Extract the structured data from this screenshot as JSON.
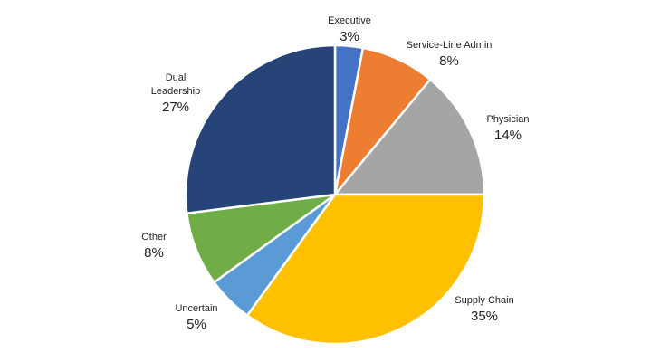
{
  "chart_data": {
    "type": "pie",
    "start": "top",
    "direction": "clockwise",
    "slices": [
      {
        "label": "Executive",
        "value": 3,
        "pct_label": "3%",
        "color": "#4472C4"
      },
      {
        "label": "Service-Line Admin",
        "value": 8,
        "pct_label": "8%",
        "color": "#ED7D31"
      },
      {
        "label": "Physician",
        "value": 14,
        "pct_label": "14%",
        "color": "#A5A5A5"
      },
      {
        "label": "Supply Chain",
        "value": 35,
        "pct_label": "35%",
        "color": "#FFC000"
      },
      {
        "label": "Uncertain",
        "value": 5,
        "pct_label": "5%",
        "color": "#5B9BD5"
      },
      {
        "label": "Other",
        "value": 8,
        "pct_label": "8%",
        "color": "#70AD47"
      },
      {
        "label": "Dual Leadership",
        "value": 27,
        "pct_label": "27%",
        "color": "#264478"
      }
    ]
  }
}
